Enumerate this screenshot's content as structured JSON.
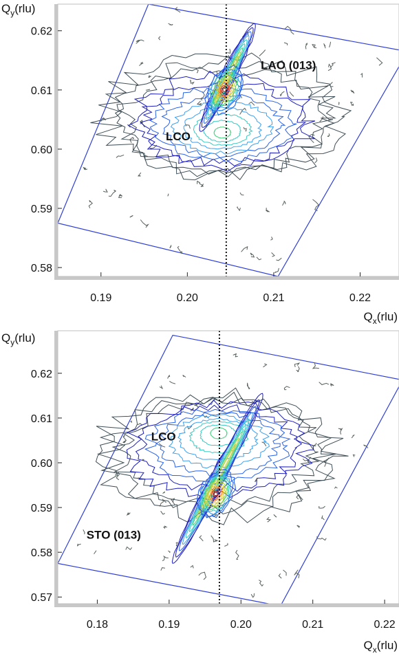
{
  "chart_data": [
    {
      "type": "contour",
      "panel": "top",
      "xlabel": {
        "main": "Q",
        "sub": "x",
        "unit": "(rlu)"
      },
      "ylabel": {
        "main": "Q",
        "sub": "y",
        "unit": "(rlu)"
      },
      "xlim": [
        0.185,
        0.2245
      ],
      "ylim": [
        0.5785,
        0.6245
      ],
      "xticks": [
        0.19,
        0.2,
        0.21,
        0.22
      ],
      "xtick_labels": [
        "0.19",
        "0.20",
        "0.21",
        "0.22"
      ],
      "yticks": [
        0.58,
        0.59,
        0.6,
        0.61,
        0.62
      ],
      "ytick_labels": [
        "0.58",
        "0.59",
        "0.60",
        "0.61",
        "0.62"
      ],
      "reference_line_x": 0.2045,
      "scan_area": [
        [
          0.185,
          0.5875
        ],
        [
          0.1955,
          0.6245
        ],
        [
          0.2255,
          0.6165
        ],
        [
          0.2105,
          0.5785
        ]
      ],
      "substrate_peak": {
        "label": "LAO (013)",
        "x": 0.2043,
        "y": 0.61
      },
      "film_peak": {
        "label": "LCO",
        "x": 0.204,
        "y": 0.601
      },
      "streak": {
        "from": [
          0.2015,
          0.603
        ],
        "to": [
          0.2078,
          0.6212
        ]
      },
      "annotations": [
        {
          "text": "LAO (013)",
          "x": 0.2085,
          "y": 0.6135
        },
        {
          "text": "LCO",
          "x": 0.1975,
          "y": 0.6015
        }
      ]
    },
    {
      "type": "contour",
      "panel": "bottom",
      "xlabel": {
        "main": "Q",
        "sub": "x",
        "unit": "(rlu)"
      },
      "ylabel": {
        "main": "Q",
        "sub": "y",
        "unit": "(rlu)"
      },
      "xlim": [
        0.1745,
        0.222
      ],
      "ylim": [
        0.5685,
        0.6295
      ],
      "xticks": [
        0.18,
        0.19,
        0.2,
        0.21,
        0.22
      ],
      "xtick_labels": [
        "0.18",
        "0.19",
        "0.20",
        "0.21",
        "0.22"
      ],
      "yticks": [
        0.57,
        0.58,
        0.59,
        0.6,
        0.61,
        0.62
      ],
      "ytick_labels": [
        "0.57",
        "0.58",
        "0.59",
        "0.60",
        "0.61",
        "0.62"
      ],
      "reference_line_x": 0.197,
      "scan_area": [
        [
          0.1745,
          0.5775
        ],
        [
          0.1905,
          0.6285
        ],
        [
          0.2225,
          0.6185
        ],
        [
          0.2055,
          0.568
        ]
      ],
      "substrate_peak": {
        "label": "STO (013)",
        "x": 0.1965,
        "y": 0.593
      },
      "film_peak": {
        "label": "LCO",
        "x": 0.197,
        "y": 0.61
      },
      "streak": {
        "from": [
          0.1905,
          0.5775
        ],
        "to": [
          0.203,
          0.6155
        ]
      },
      "annotations": [
        {
          "text": "STO (013)",
          "x": 0.1785,
          "y": 0.583
        },
        {
          "text": "LCO",
          "x": 0.1875,
          "y": 0.605
        }
      ]
    }
  ],
  "colors": {
    "frame": "#2f3fd6",
    "axis_shadow": "#c8c8c8",
    "outer_contour": "#555f5a",
    "contour_ramp": [
      "#3e4d55",
      "#1d1dbf",
      "#2a63e6",
      "#3aa0ef",
      "#36c9c2",
      "#3fd07a",
      "#b8d24a",
      "#f2c53a",
      "#f08c2c",
      "#e0341e",
      "#8a1414"
    ]
  }
}
